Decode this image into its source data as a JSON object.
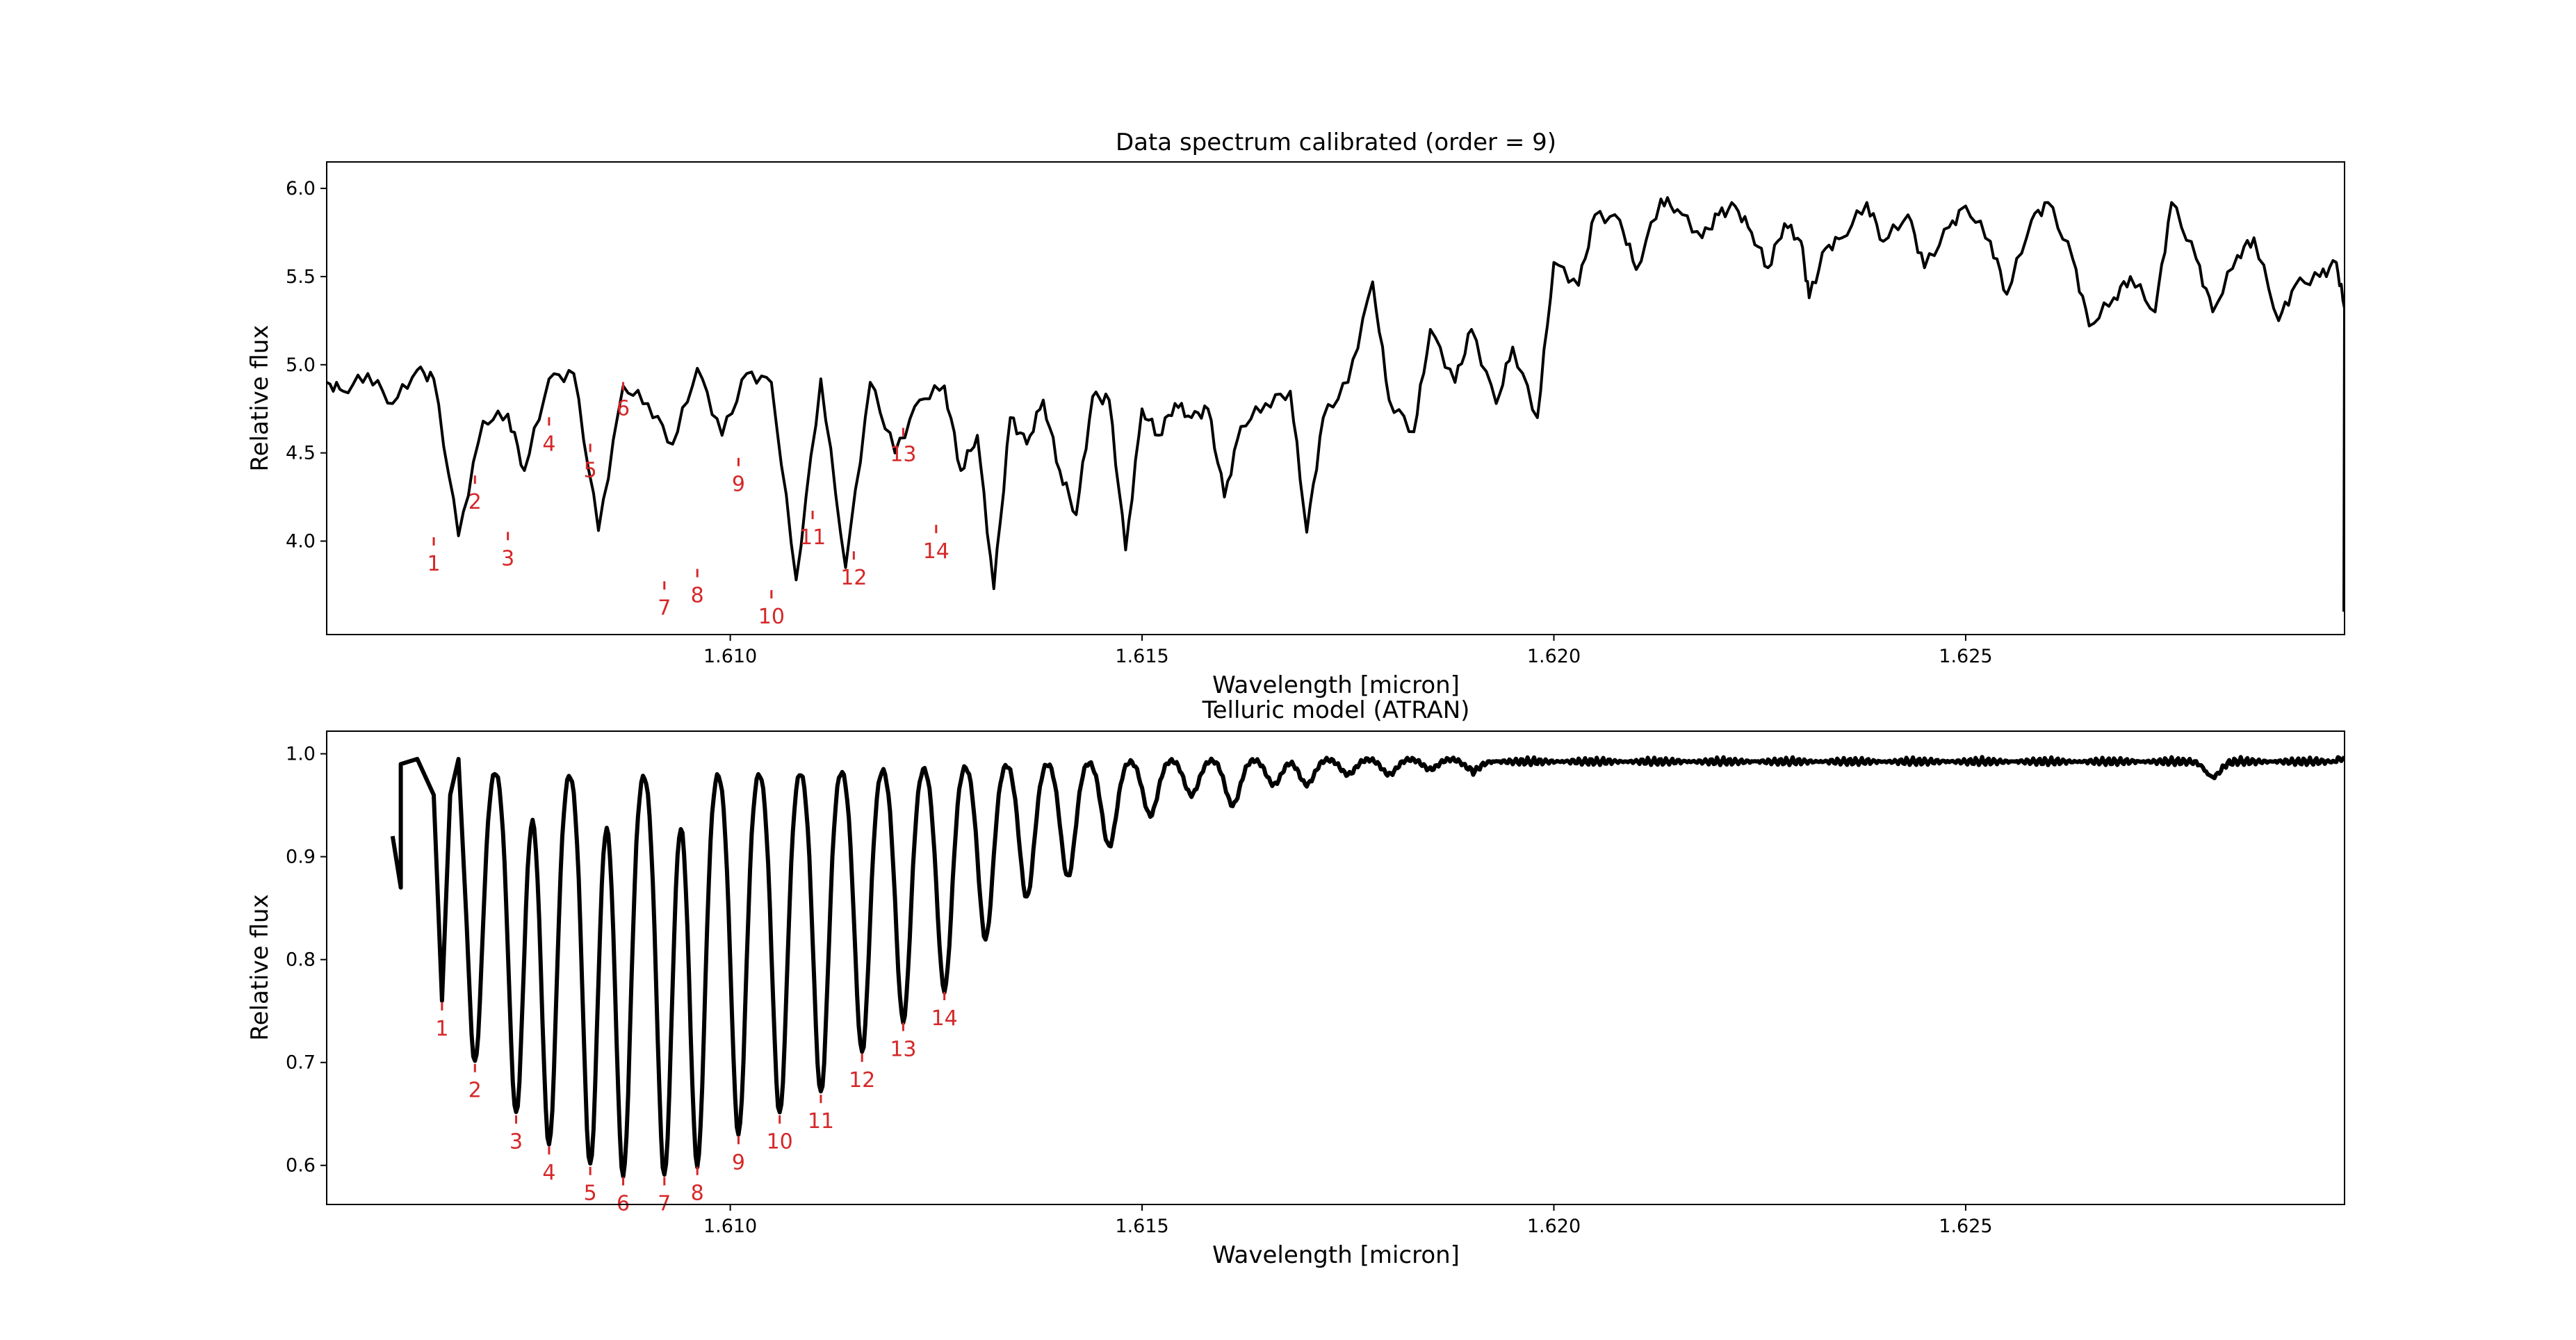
{
  "chart_data": [
    {
      "type": "line",
      "title": "Data spectrum calibrated (order = 9)",
      "xlabel": "Wavelength [micron]",
      "ylabel": "Relative flux",
      "xlim": [
        1.6051,
        1.6296
      ],
      "ylim": [
        3.47,
        6.15
      ],
      "xticks": [
        1.61,
        1.615,
        1.62,
        1.625
      ],
      "xtick_labels": [
        "1.610",
        "1.615",
        "1.620",
        "1.625"
      ],
      "yticks": [
        4.0,
        4.5,
        5.0,
        5.5,
        6.0
      ],
      "ytick_labels": [
        "4.0",
        "4.5",
        "5.0",
        "5.5",
        "6.0"
      ],
      "grid": false,
      "line_color": "#000000",
      "annotation_color": "#d62728",
      "series": [
        {
          "x": [
            1.6051,
            1.6053,
            1.6056,
            1.6059,
            1.6062,
            1.6064,
            1.6067,
            1.607,
            1.6073,
            1.6075,
            1.6078,
            1.6081,
            1.6084,
            1.6087,
            1.609,
            1.6093,
            1.6096,
            1.6099,
            1.6102,
            1.6105,
            1.6108,
            1.6111,
            1.6114,
            1.6117,
            1.612,
            1.6123,
            1.6126,
            1.6128,
            1.613,
            1.6132,
            1.6134,
            1.6136,
            1.6138,
            1.614,
            1.6142,
            1.6144,
            1.6146,
            1.6148,
            1.615,
            1.6152,
            1.6154,
            1.6156,
            1.6158,
            1.616,
            1.6162,
            1.6165,
            1.6168,
            1.617,
            1.6172,
            1.6175,
            1.6178,
            1.618,
            1.6183,
            1.6185,
            1.6188,
            1.619,
            1.6193,
            1.6195,
            1.6198,
            1.62,
            1.6203,
            1.6205,
            1.6208,
            1.621,
            1.6213,
            1.6215,
            1.6218,
            1.622,
            1.6222,
            1.6224,
            1.6226,
            1.6228,
            1.623,
            1.6231,
            1.6233,
            1.6235,
            1.6238,
            1.624,
            1.6243,
            1.6245,
            1.6248,
            1.625,
            1.6253,
            1.6255,
            1.6258,
            1.626,
            1.6263,
            1.6265,
            1.6268,
            1.627,
            1.6273,
            1.6275,
            1.6278,
            1.628,
            1.6283,
            1.6285,
            1.6288,
            1.629,
            1.6293,
            1.6295,
            1.6296
          ],
          "y": [
            4.9,
            4.85,
            4.95,
            4.78,
            4.97,
            4.92,
            4.03,
            4.68,
            4.72,
            4.4,
            4.92,
            4.95,
            4.06,
            4.88,
            4.78,
            4.55,
            4.98,
            4.6,
            4.95,
            4.9,
            3.78,
            4.92,
            3.85,
            4.9,
            4.5,
            4.8,
            4.88,
            4.4,
            4.6,
            3.73,
            4.7,
            4.55,
            4.8,
            4.4,
            4.15,
            4.82,
            4.8,
            3.95,
            4.75,
            4.6,
            4.78,
            4.7,
            4.75,
            4.25,
            4.65,
            4.78,
            4.85,
            4.05,
            4.7,
            4.9,
            5.47,
            4.8,
            4.62,
            5.2,
            4.9,
            5.2,
            4.78,
            5.1,
            4.7,
            5.58,
            5.45,
            5.85,
            5.82,
            5.54,
            5.94,
            5.88,
            5.72,
            5.85,
            5.9,
            5.75,
            5.55,
            5.8,
            5.7,
            5.38,
            5.66,
            5.72,
            5.92,
            5.7,
            5.85,
            5.55,
            5.78,
            5.9,
            5.7,
            5.4,
            5.82,
            5.92,
            5.6,
            5.22,
            5.38,
            5.5,
            5.3,
            5.92,
            5.6,
            5.3,
            5.62,
            5.72,
            5.25,
            5.45,
            5.5,
            5.58,
            5.32
          ]
        }
      ],
      "annotations": [
        {
          "label": "1",
          "x": 1.6064,
          "y": 4.03
        },
        {
          "label": "2",
          "x": 1.6069,
          "y": 4.38
        },
        {
          "label": "3",
          "x": 1.6073,
          "y": 4.06
        },
        {
          "label": "4",
          "x": 1.6078,
          "y": 4.71
        },
        {
          "label": "5",
          "x": 1.6083,
          "y": 4.56
        },
        {
          "label": "6",
          "x": 1.6087,
          "y": 4.91
        },
        {
          "label": "7",
          "x": 1.6092,
          "y": 3.78
        },
        {
          "label": "8",
          "x": 1.6096,
          "y": 3.85
        },
        {
          "label": "9",
          "x": 1.6101,
          "y": 4.48
        },
        {
          "label": "10",
          "x": 1.6105,
          "y": 3.73
        },
        {
          "label": "11",
          "x": 1.611,
          "y": 4.18
        },
        {
          "label": "12",
          "x": 1.6115,
          "y": 3.95
        },
        {
          "label": "13",
          "x": 1.6121,
          "y": 4.65
        },
        {
          "label": "14",
          "x": 1.6125,
          "y": 4.1
        }
      ]
    },
    {
      "type": "line",
      "title": "Telluric model (ATRAN)",
      "xlabel": "Wavelength [micron]",
      "ylabel": "Relative flux",
      "xlim": [
        1.6051,
        1.6296
      ],
      "ylim": [
        0.562,
        1.022
      ],
      "xticks": [
        1.61,
        1.615,
        1.62,
        1.625
      ],
      "xtick_labels": [
        "1.610",
        "1.615",
        "1.620",
        "1.625"
      ],
      "yticks": [
        0.6,
        0.7,
        0.8,
        0.9,
        1.0
      ],
      "ytick_labels": [
        "0.6",
        "0.7",
        "0.8",
        "0.9",
        "1.0"
      ],
      "grid": false,
      "line_color": "#000000",
      "annotation_color": "#d62728",
      "series": [
        {
          "x": [
            1.6059,
            1.606,
            1.606,
            1.6062,
            1.6064,
            1.6065,
            1.6066,
            1.6067
          ],
          "y": [
            0.92,
            0.87,
            0.99,
            0.995,
            0.96,
            0.76,
            0.96,
            0.995
          ]
        }
      ],
      "absorption_lines": [
        {
          "x": 1.6065,
          "depth": 0.76
        },
        {
          "x": 1.6069,
          "depth": 0.7
        },
        {
          "x": 1.6074,
          "depth": 0.65
        },
        {
          "x": 1.6078,
          "depth": 0.62
        },
        {
          "x": 1.6083,
          "depth": 0.6
        },
        {
          "x": 1.6087,
          "depth": 0.59
        },
        {
          "x": 1.6092,
          "depth": 0.59
        },
        {
          "x": 1.6096,
          "depth": 0.6
        },
        {
          "x": 1.6101,
          "depth": 0.63
        },
        {
          "x": 1.6106,
          "depth": 0.65
        },
        {
          "x": 1.6111,
          "depth": 0.67
        },
        {
          "x": 1.6116,
          "depth": 0.71
        },
        {
          "x": 1.6121,
          "depth": 0.74
        },
        {
          "x": 1.6126,
          "depth": 0.77
        },
        {
          "x": 1.6131,
          "depth": 0.82
        },
        {
          "x": 1.6136,
          "depth": 0.86
        },
        {
          "x": 1.6141,
          "depth": 0.88
        },
        {
          "x": 1.6146,
          "depth": 0.91
        },
        {
          "x": 1.6151,
          "depth": 0.94
        },
        {
          "x": 1.6156,
          "depth": 0.96
        },
        {
          "x": 1.6161,
          "depth": 0.95
        },
        {
          "x": 1.6166,
          "depth": 0.97
        },
        {
          "x": 1.617,
          "depth": 0.97
        },
        {
          "x": 1.6175,
          "depth": 0.98
        },
        {
          "x": 1.618,
          "depth": 0.98
        },
        {
          "x": 1.6185,
          "depth": 0.985
        },
        {
          "x": 1.619,
          "depth": 0.985
        },
        {
          "x": 1.628,
          "depth": 0.98
        }
      ],
      "annotations": [
        {
          "label": "1",
          "x": 1.6065,
          "y": 0.76
        },
        {
          "label": "2",
          "x": 1.6069,
          "y": 0.7
        },
        {
          "label": "3",
          "x": 1.6074,
          "y": 0.65
        },
        {
          "label": "4",
          "x": 1.6078,
          "y": 0.62
        },
        {
          "label": "5",
          "x": 1.6083,
          "y": 0.6
        },
        {
          "label": "6",
          "x": 1.6087,
          "y": 0.59
        },
        {
          "label": "7",
          "x": 1.6092,
          "y": 0.59
        },
        {
          "label": "8",
          "x": 1.6096,
          "y": 0.6
        },
        {
          "label": "9",
          "x": 1.6101,
          "y": 0.63
        },
        {
          "label": "10",
          "x": 1.6106,
          "y": 0.65
        },
        {
          "label": "11",
          "x": 1.6111,
          "y": 0.67
        },
        {
          "label": "12",
          "x": 1.6116,
          "y": 0.71
        },
        {
          "label": "13",
          "x": 1.6121,
          "y": 0.74
        },
        {
          "label": "14",
          "x": 1.6126,
          "y": 0.77
        }
      ]
    }
  ]
}
